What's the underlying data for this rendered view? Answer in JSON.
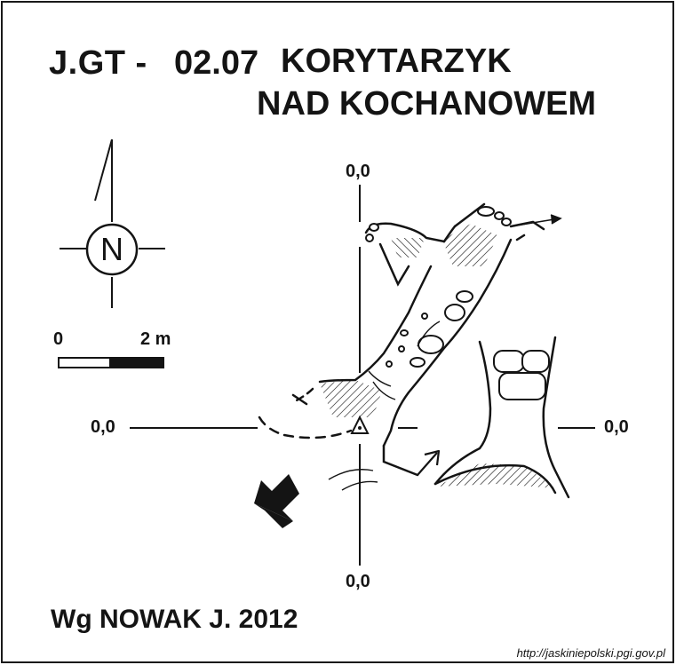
{
  "title": {
    "code_prefix": "J.GT -",
    "code_number": "02.07",
    "name_line1": "KORYTARZYK",
    "name_line2": "NAD KOCHANOWEM"
  },
  "grid": {
    "top_label": "0,0",
    "bottom_label": "0,0",
    "left_label": "0,0",
    "right_label": "0,0"
  },
  "north_arrow": {
    "letter": "N"
  },
  "scale_bar": {
    "start_label": "0",
    "end_label": "2 m"
  },
  "author": "Wg NOWAK J. 2012",
  "source": "http://jaskiniepolski.pgi.gov.pl",
  "colors": {
    "ink": "#141414",
    "background": "#ffffff"
  },
  "icons": [
    "north-arrow-icon",
    "entrance-arrow-icon",
    "survey-station-icon"
  ]
}
